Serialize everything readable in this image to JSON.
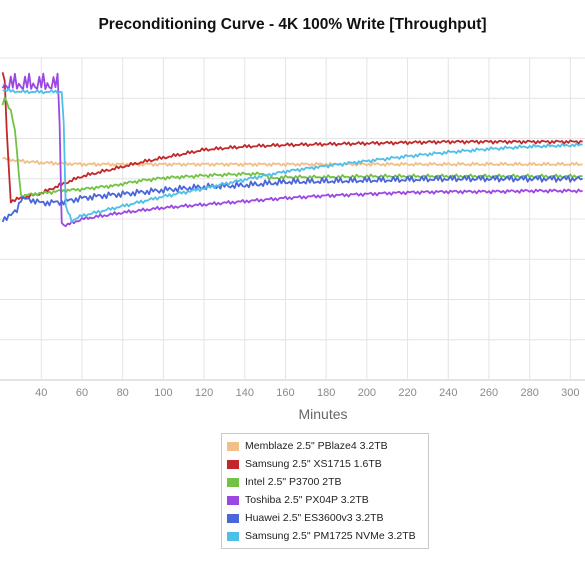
{
  "chart_data": {
    "type": "line",
    "title": "Preconditioning Curve - 4K 100% Write [Throughput]",
    "xlabel": "Minutes",
    "ylabel": "",
    "x_ticks": [
      40,
      60,
      80,
      100,
      120,
      140,
      160,
      180,
      200,
      220,
      240,
      260,
      280,
      300
    ],
    "grid": true,
    "legend_position": "bottom",
    "series": [
      {
        "name": "Memblaze 2.5\" PBlaze4 3.2TB",
        "color": "#f0c088",
        "x": [
          21,
          30,
          40,
          50,
          60,
          80,
          100,
          120,
          140,
          160,
          180,
          200,
          220,
          240,
          260,
          280,
          306
        ],
        "y": [
          275,
          272,
          270,
          269,
          268,
          268,
          268,
          268,
          268,
          268,
          268,
          268,
          268,
          268,
          268,
          268,
          268
        ]
      },
      {
        "name": "Samsung 2.5\" XS1715 1.6TB",
        "color": "#c0282a",
        "x": [
          21,
          22,
          23,
          25,
          30,
          40,
          50,
          60,
          70,
          80,
          90,
          100,
          110,
          120,
          130,
          140,
          150,
          160,
          180,
          200,
          220,
          240,
          260,
          280,
          306
        ],
        "y": [
          380,
          372,
          310,
          222,
          226,
          232,
          243,
          253,
          259,
          265,
          271,
          276,
          281,
          286,
          288,
          290,
          291,
          292,
          293,
          294,
          295,
          296,
          296,
          296,
          296
        ]
      },
      {
        "name": "Intel 2.5\" P3700 2TB",
        "color": "#72c245",
        "x": [
          21,
          22,
          23,
          25,
          27,
          30,
          40,
          50,
          60,
          70,
          78,
          80,
          90,
          100,
          120,
          140,
          150,
          152,
          160,
          180,
          200,
          220,
          240,
          260,
          280,
          306
        ],
        "y": [
          340,
          352,
          345,
          335,
          310,
          229,
          232,
          235,
          237,
          240,
          242,
          244,
          248,
          251,
          254,
          256,
          256,
          250,
          252,
          252,
          253,
          253,
          253,
          253,
          253,
          253
        ]
      },
      {
        "name": "Toshiba 2.5\" PX04P 3.2TB",
        "color": "#9b48e3",
        "x": [
          21,
          30,
          40,
          48,
          49,
          50,
          52,
          60,
          80,
          100,
          120,
          140,
          160,
          180,
          200,
          220,
          240,
          260,
          280,
          306
        ],
        "y": [
          368,
          368,
          368,
          368,
          320,
          195,
          192,
          200,
          208,
          214,
          218,
          222,
          226,
          229,
          231,
          233,
          234,
          234,
          235,
          235
        ]
      },
      {
        "name": "Huawei 2.5\" ES3600v3 3.2TB",
        "color": "#4a66d9",
        "x": [
          21,
          25,
          28,
          30,
          35,
          40,
          50,
          60,
          70,
          80,
          100,
          120,
          140,
          160,
          180,
          200,
          220,
          240,
          260,
          280,
          306
        ],
        "y": [
          200,
          204,
          212,
          225,
          224,
          220,
          221,
          226,
          229,
          231,
          236,
          240,
          242,
          246,
          247,
          248,
          249,
          250,
          250,
          250,
          250
        ]
      },
      {
        "name": "Samsung 2.5\" PM1725 NVMe 3.2TB",
        "color": "#50bfe8",
        "x": [
          21,
          30,
          40,
          50,
          51,
          52,
          55,
          60,
          70,
          80,
          90,
          100,
          120,
          140,
          160,
          180,
          200,
          220,
          240,
          260,
          280,
          306
        ],
        "y": [
          360,
          358,
          358,
          358,
          320,
          215,
          198,
          204,
          210,
          216,
          222,
          228,
          238,
          249,
          259,
          266,
          272,
          278,
          283,
          287,
          290,
          292
        ]
      }
    ]
  }
}
